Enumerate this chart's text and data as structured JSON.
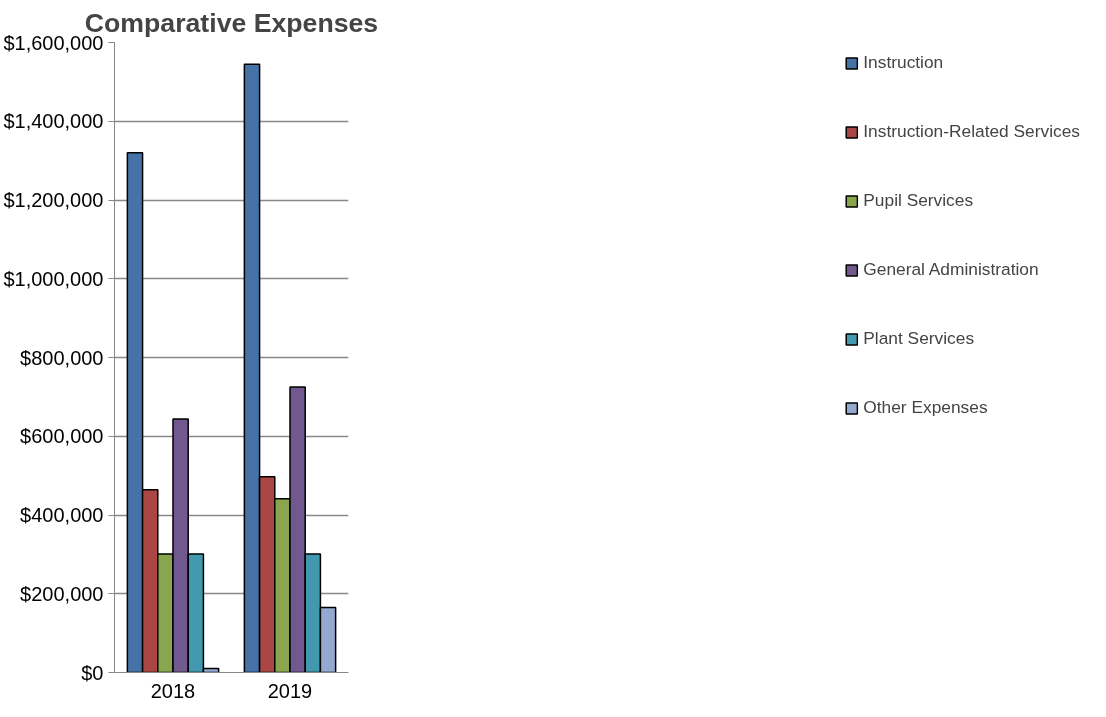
{
  "chart_data": {
    "type": "bar",
    "title": "Comparative Expenses",
    "categories": [
      "2018",
      "2019"
    ],
    "series": [
      {
        "name": "Instruction",
        "color": "#4572a7",
        "values": [
          1320000,
          1545000
        ]
      },
      {
        "name": "Instruction-Related Services",
        "color": "#aa4643",
        "values": [
          464000,
          497000
        ]
      },
      {
        "name": "Pupil Services",
        "color": "#89a54e",
        "values": [
          301000,
          441000
        ]
      },
      {
        "name": "General Administration",
        "color": "#71588f",
        "values": [
          644000,
          725000
        ]
      },
      {
        "name": "Plant Services",
        "color": "#4198af",
        "values": [
          301000,
          301000
        ]
      },
      {
        "name": "Other Expenses",
        "color": "#93a9cf",
        "values": [
          10000,
          165000
        ]
      }
    ],
    "ylim": [
      0,
      1600000
    ],
    "yticks": [
      {
        "value": 0,
        "label": "$0"
      },
      {
        "value": 200000,
        "label": "$200,000"
      },
      {
        "value": 400000,
        "label": "$400,000"
      },
      {
        "value": 600000,
        "label": "$600,000"
      },
      {
        "value": 800000,
        "label": "$800,000"
      },
      {
        "value": 1000000,
        "label": "$1,000,000"
      },
      {
        "value": 1200000,
        "label": "$1,200,000"
      },
      {
        "value": 1400000,
        "label": "$1,400,000"
      },
      {
        "value": 1600000,
        "label": "$1,600,000"
      }
    ],
    "grid": "y",
    "legend": "right"
  }
}
